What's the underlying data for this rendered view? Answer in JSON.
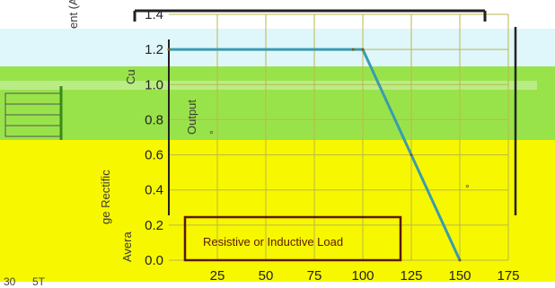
{
  "chart_data": {
    "type": "line",
    "title": "",
    "xlabel": "",
    "ylabel": "Average Rectified Forward Current (A)",
    "ylabel_fragments": [
      "ge Rectific",
      "Avera",
      "Cu",
      "ent (A)"
    ],
    "xlim": [
      0,
      175
    ],
    "ylim": [
      0,
      1.4
    ],
    "x_ticks": [
      "25",
      "50",
      "75",
      "100",
      "125",
      "150",
      "175"
    ],
    "y_ticks": [
      "0.0",
      "0.2",
      "0.4",
      "0.6",
      "0.8",
      "1.0",
      "1.2",
      "1.4"
    ],
    "grid": true,
    "series": [
      {
        "x": [
          0,
          95,
          100,
          125,
          150
        ],
        "y": [
          1.2,
          1.2,
          1.2,
          0.6,
          0.0
        ]
      }
    ],
    "annotations": [
      "Resistive or Inductive Load"
    ],
    "partial_labels": [
      "Output"
    ],
    "stray_text": [
      "30",
      "5T",
      "°",
      "°"
    ]
  },
  "colors": {
    "background": "#ffffff",
    "light_blue_band": "#dff6fb",
    "green_band": "#99e34a",
    "yellow_band": "#f7f700",
    "curve": "#8b5a00",
    "curve_in_blue": "#3a9bb0",
    "grid": "#b9b94a",
    "frame": "#222222",
    "annotation_box": "#5a1a00",
    "bottom_strip": "#ffffff"
  }
}
